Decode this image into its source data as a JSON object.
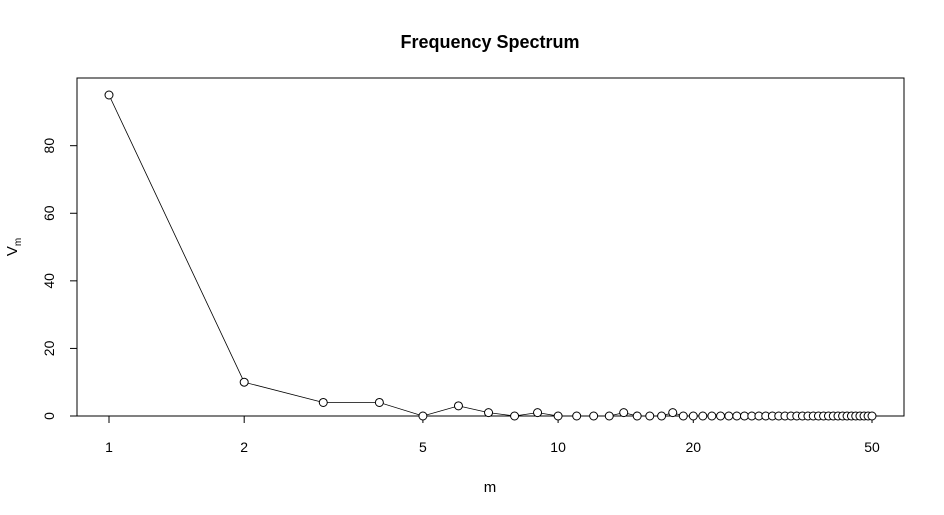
{
  "chart_data": {
    "type": "line",
    "title": "Frequency Spectrum",
    "xlabel": "m",
    "ylabel_main": "V",
    "ylabel_sub": "m",
    "x_scale": "log",
    "xlim": [
      1,
      50
    ],
    "ylim": [
      0,
      95
    ],
    "x_ticks": [
      1,
      2,
      5,
      10,
      20,
      50
    ],
    "y_ticks": [
      0,
      20,
      40,
      60,
      80
    ],
    "grid": false,
    "marker": "open-circle",
    "line_color": "#000000",
    "x": [
      1,
      2,
      3,
      4,
      5,
      6,
      7,
      8,
      9,
      10,
      11,
      12,
      13,
      14,
      15,
      16,
      17,
      18,
      19,
      20,
      21,
      22,
      23,
      24,
      25,
      26,
      27,
      28,
      29,
      30,
      31,
      32,
      33,
      34,
      35,
      36,
      37,
      38,
      39,
      40,
      41,
      42,
      43,
      44,
      45,
      46,
      47,
      48,
      49,
      50
    ],
    "y": [
      95,
      10,
      4,
      4,
      0,
      3,
      1,
      0,
      1,
      0,
      0,
      0,
      0,
      1,
      0,
      0,
      0,
      1,
      0,
      0,
      0,
      0,
      0,
      0,
      0,
      0,
      0,
      0,
      0,
      0,
      0,
      0,
      0,
      0,
      0,
      0,
      0,
      0,
      0,
      0,
      0,
      0,
      0,
      0,
      0,
      0,
      0,
      0,
      0,
      0
    ]
  }
}
